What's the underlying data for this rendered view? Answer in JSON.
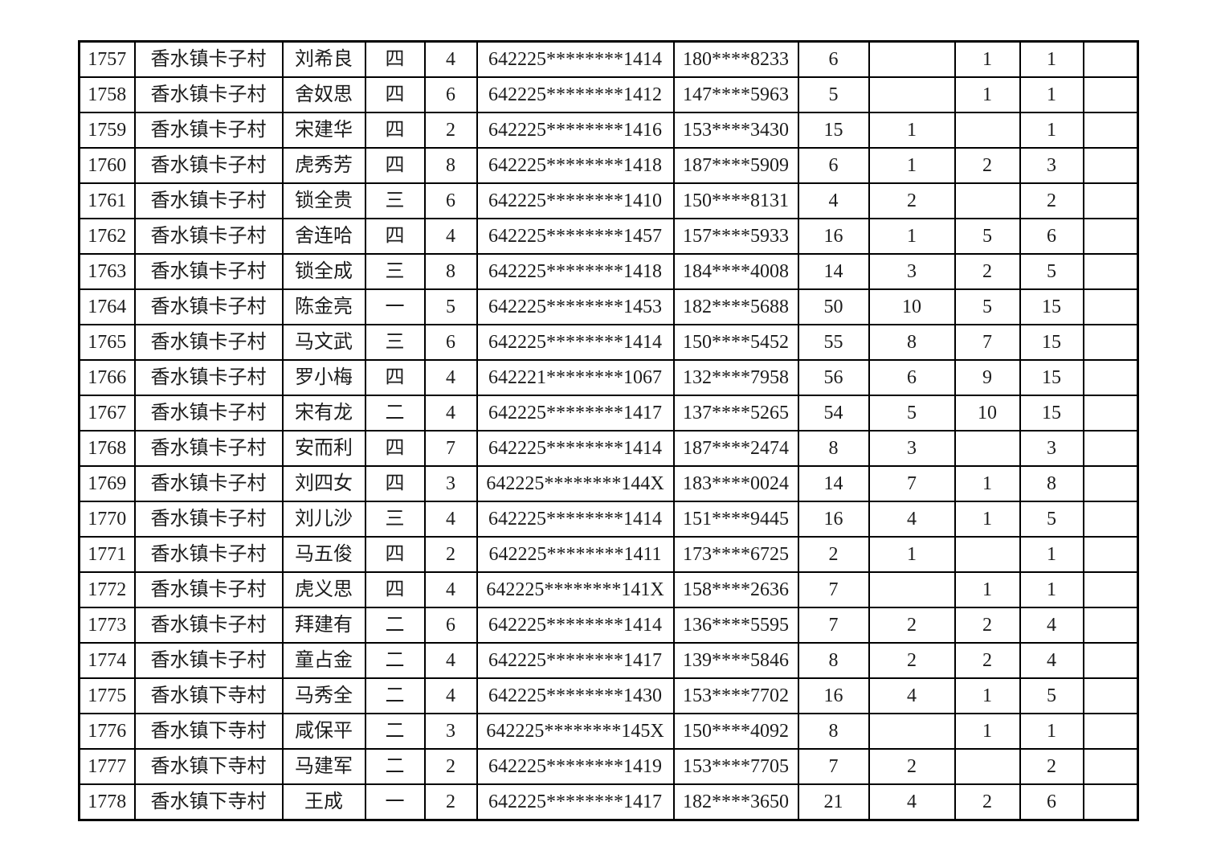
{
  "table": {
    "rows": [
      [
        "1757",
        "香水镇卡子村",
        "刘希良",
        "四",
        "4",
        "642225********1414",
        "180****8233",
        "6",
        "",
        "1",
        "1",
        ""
      ],
      [
        "1758",
        "香水镇卡子村",
        "舍奴思",
        "四",
        "6",
        "642225********1412",
        "147****5963",
        "5",
        "",
        "1",
        "1",
        ""
      ],
      [
        "1759",
        "香水镇卡子村",
        "宋建华",
        "四",
        "2",
        "642225********1416",
        "153****3430",
        "15",
        "1",
        "",
        "1",
        ""
      ],
      [
        "1760",
        "香水镇卡子村",
        "虎秀芳",
        "四",
        "8",
        "642225********1418",
        "187****5909",
        "6",
        "1",
        "2",
        "3",
        ""
      ],
      [
        "1761",
        "香水镇卡子村",
        "锁全贵",
        "三",
        "6",
        "642225********1410",
        "150****8131",
        "4",
        "2",
        "",
        "2",
        ""
      ],
      [
        "1762",
        "香水镇卡子村",
        "舍连哈",
        "四",
        "4",
        "642225********1457",
        "157****5933",
        "16",
        "1",
        "5",
        "6",
        ""
      ],
      [
        "1763",
        "香水镇卡子村",
        "锁全成",
        "三",
        "8",
        "642225********1418",
        "184****4008",
        "14",
        "3",
        "2",
        "5",
        ""
      ],
      [
        "1764",
        "香水镇卡子村",
        "陈金亮",
        "一",
        "5",
        "642225********1453",
        "182****5688",
        "50",
        "10",
        "5",
        "15",
        ""
      ],
      [
        "1765",
        "香水镇卡子村",
        "马文武",
        "三",
        "6",
        "642225********1414",
        "150****5452",
        "55",
        "8",
        "7",
        "15",
        ""
      ],
      [
        "1766",
        "香水镇卡子村",
        "罗小梅",
        "四",
        "4",
        "642221********1067",
        "132****7958",
        "56",
        "6",
        "9",
        "15",
        ""
      ],
      [
        "1767",
        "香水镇卡子村",
        "宋有龙",
        "二",
        "4",
        "642225********1417",
        "137****5265",
        "54",
        "5",
        "10",
        "15",
        ""
      ],
      [
        "1768",
        "香水镇卡子村",
        "安而利",
        "四",
        "7",
        "642225********1414",
        "187****2474",
        "8",
        "3",
        "",
        "3",
        ""
      ],
      [
        "1769",
        "香水镇卡子村",
        "刘四女",
        "四",
        "3",
        "642225********144X",
        "183****0024",
        "14",
        "7",
        "1",
        "8",
        ""
      ],
      [
        "1770",
        "香水镇卡子村",
        "刘儿沙",
        "三",
        "4",
        "642225********1414",
        "151****9445",
        "16",
        "4",
        "1",
        "5",
        ""
      ],
      [
        "1771",
        "香水镇卡子村",
        "马五俊",
        "四",
        "2",
        "642225********1411",
        "173****6725",
        "2",
        "1",
        "",
        "1",
        ""
      ],
      [
        "1772",
        "香水镇卡子村",
        "虎义思",
        "四",
        "4",
        "642225********141X",
        "158****2636",
        "7",
        "",
        "1",
        "1",
        ""
      ],
      [
        "1773",
        "香水镇卡子村",
        "拜建有",
        "二",
        "6",
        "642225********1414",
        "136****5595",
        "7",
        "2",
        "2",
        "4",
        ""
      ],
      [
        "1774",
        "香水镇卡子村",
        "童占金",
        "二",
        "4",
        "642225********1417",
        "139****5846",
        "8",
        "2",
        "2",
        "4",
        ""
      ],
      [
        "1775",
        "香水镇下寺村",
        "马秀全",
        "二",
        "4",
        "642225********1430",
        "153****7702",
        "16",
        "4",
        "1",
        "5",
        ""
      ],
      [
        "1776",
        "香水镇下寺村",
        "咸保平",
        "二",
        "3",
        "642225********145X",
        "150****4092",
        "8",
        "",
        "1",
        "1",
        ""
      ],
      [
        "1777",
        "香水镇下寺村",
        "马建军",
        "二",
        "2",
        "642225********1419",
        "153****7705",
        "7",
        "2",
        "",
        "2",
        ""
      ],
      [
        "1778",
        "香水镇下寺村",
        "王成",
        "一",
        "2",
        "642225********1417",
        "182****3650",
        "21",
        "4",
        "2",
        "6",
        ""
      ]
    ]
  }
}
